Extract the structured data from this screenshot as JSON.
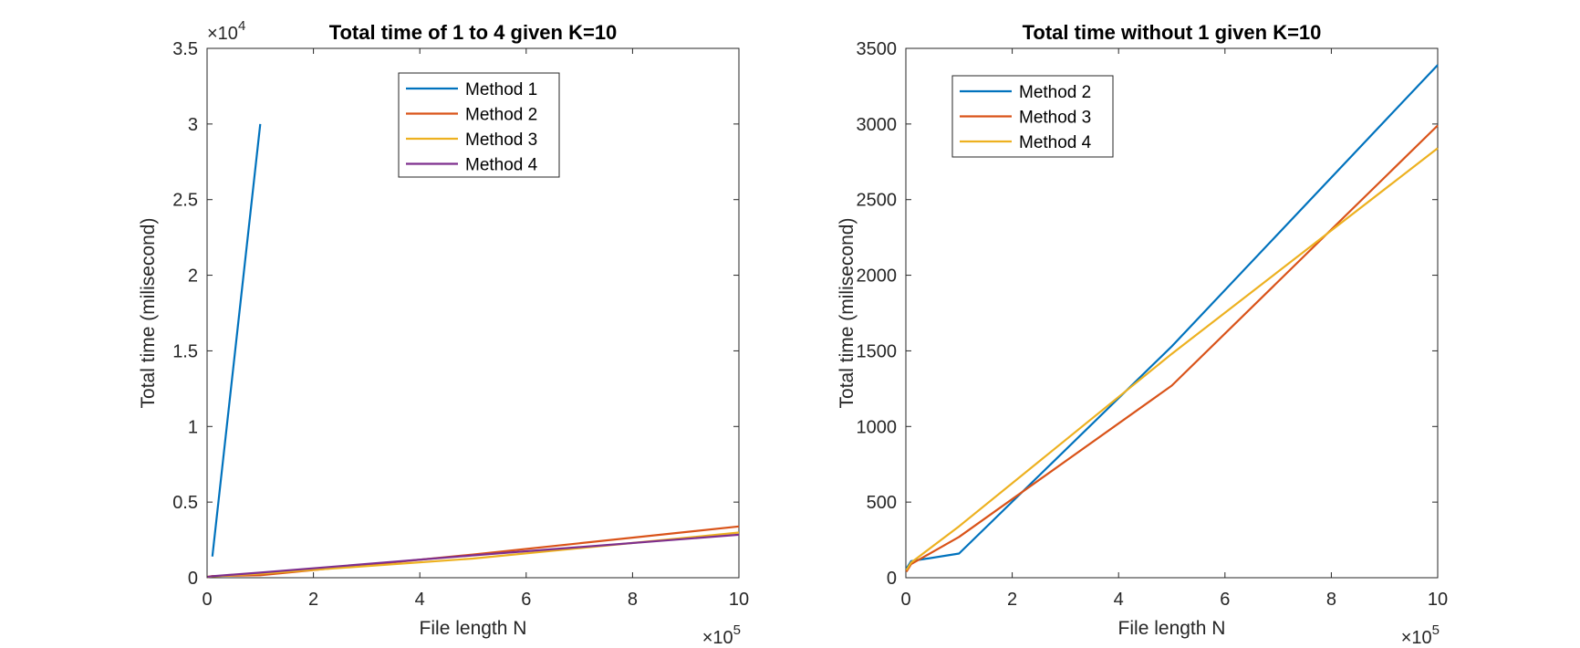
{
  "chart_data": [
    {
      "type": "line",
      "title": "Total time of 1 to 4 given K=10",
      "xlabel": "File length N",
      "ylabel": "Total time (milisecond)",
      "x_exponent_label": "×10",
      "x_exponent_power": "5",
      "y_exponent_label": "×10",
      "y_exponent_power": "4",
      "xlim": [
        0,
        1000000
      ],
      "ylim": [
        0,
        35000
      ],
      "x_ticks": [
        0,
        200000,
        400000,
        600000,
        800000,
        1000000
      ],
      "x_tick_labels": [
        "0",
        "2",
        "4",
        "6",
        "8",
        "10"
      ],
      "y_ticks": [
        0,
        5000,
        10000,
        15000,
        20000,
        25000,
        30000,
        35000
      ],
      "y_tick_labels": [
        "0",
        "0.5",
        "1",
        "1.5",
        "2",
        "2.5",
        "3",
        "3.5"
      ],
      "grid": false,
      "legend_position": "top-center",
      "series": [
        {
          "name": "Method 1",
          "color": "#0072BD",
          "x": [
            10000,
            100000
          ],
          "y": [
            1400,
            30000
          ]
        },
        {
          "name": "Method 2",
          "color": "#D95319",
          "x": [
            1000,
            10000,
            100000,
            500000,
            1000000
          ],
          "y": [
            60,
            110,
            160,
            1530,
            3390
          ]
        },
        {
          "name": "Method 3",
          "color": "#EDB120",
          "x": [
            1000,
            10000,
            100000,
            500000,
            1000000
          ],
          "y": [
            40,
            90,
            270,
            1270,
            2990
          ]
        },
        {
          "name": "Method 4",
          "color": "#7E2F8E",
          "x": [
            1000,
            10000,
            100000,
            500000,
            1000000
          ],
          "y": [
            50,
            100,
            340,
            1480,
            2840
          ]
        }
      ]
    },
    {
      "type": "line",
      "title": "Total time without 1 given K=10",
      "xlabel": "File length N",
      "ylabel": "Total time (milisecond)",
      "x_exponent_label": "×10",
      "x_exponent_power": "5",
      "xlim": [
        0,
        1000000
      ],
      "ylim": [
        0,
        3500
      ],
      "x_ticks": [
        0,
        200000,
        400000,
        600000,
        800000,
        1000000
      ],
      "x_tick_labels": [
        "0",
        "2",
        "4",
        "6",
        "8",
        "10"
      ],
      "y_ticks": [
        0,
        500,
        1000,
        1500,
        2000,
        2500,
        3000,
        3500
      ],
      "y_tick_labels": [
        "0",
        "500",
        "1000",
        "1500",
        "2000",
        "2500",
        "3000",
        "3500"
      ],
      "grid": false,
      "legend_position": "top-left",
      "series": [
        {
          "name": "Method 2",
          "color": "#0072BD",
          "x": [
            1000,
            10000,
            100000,
            500000,
            1000000
          ],
          "y": [
            60,
            110,
            160,
            1530,
            3390
          ]
        },
        {
          "name": "Method 3",
          "color": "#D95319",
          "x": [
            1000,
            10000,
            100000,
            500000,
            1000000
          ],
          "y": [
            40,
            90,
            270,
            1270,
            2990
          ]
        },
        {
          "name": "Method 4",
          "color": "#EDB120",
          "x": [
            1000,
            10000,
            100000,
            500000,
            1000000
          ],
          "y": [
            50,
            100,
            340,
            1480,
            2840
          ]
        }
      ]
    }
  ]
}
